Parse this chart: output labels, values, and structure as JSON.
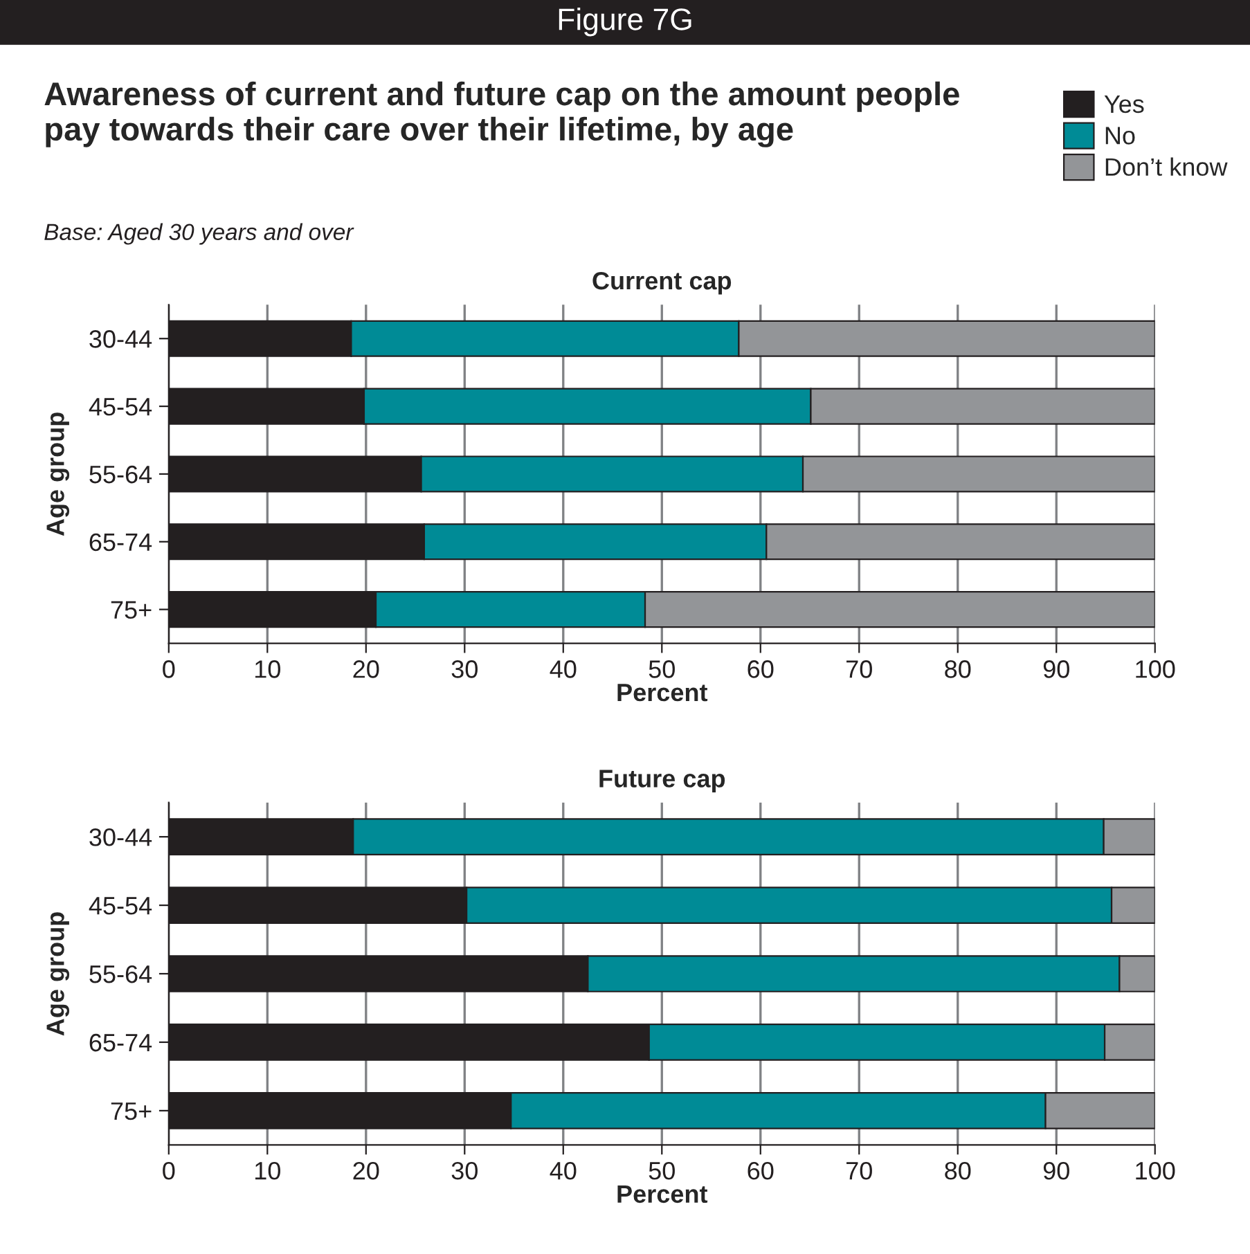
{
  "chart_data": [
    {
      "type": "bar",
      "orientation": "horizontal",
      "stacked": true,
      "title": "Current cap",
      "xlabel": "Percent",
      "ylabel": "Age group",
      "annotations": [
        "Figure 7G",
        "Awareness of current and future cap on the amount people pay towards their care over their lifetime, by age",
        "Base: Aged 30 years and over"
      ],
      "categories": [
        "30-44",
        "45-54",
        "55-64",
        "65-74",
        "75+"
      ],
      "series": [
        {
          "name": "Yes",
          "color": "#231f20",
          "values": [
            18.5,
            19.8,
            25.6,
            25.9,
            21.0
          ]
        },
        {
          "name": "No",
          "color": "#008b96",
          "values": [
            39.3,
            45.3,
            38.7,
            34.7,
            27.3
          ]
        },
        {
          "name": "Don’t know",
          "color": "#939598",
          "values": [
            42.2,
            34.9,
            35.7,
            39.4,
            51.7
          ]
        }
      ],
      "xlim": [
        0,
        100
      ],
      "xticks": [
        0,
        10,
        20,
        30,
        40,
        50,
        60,
        70,
        80,
        90,
        100
      ],
      "grid": "x",
      "legend": "top right"
    },
    {
      "type": "bar",
      "orientation": "horizontal",
      "stacked": true,
      "title": "Future cap",
      "xlabel": "Percent",
      "ylabel": "Age group",
      "categories": [
        "30-44",
        "45-54",
        "55-64",
        "65-74",
        "75+"
      ],
      "series": [
        {
          "color": "#231f20",
          "values": [
            18.7,
            30.2,
            42.5,
            48.7,
            34.7
          ]
        },
        {
          "color": "#008b96",
          "values": [
            76.1,
            65.4,
            53.9,
            46.2,
            54.2
          ]
        },
        {
          "color": "#939598",
          "values": [
            5.2,
            4.4,
            3.6,
            5.1,
            11.1
          ]
        }
      ],
      "xlim": [
        0,
        100
      ],
      "xticks": [
        0,
        10,
        20,
        30,
        40,
        50,
        60,
        70,
        80,
        90,
        100
      ],
      "grid": "x"
    }
  ]
}
